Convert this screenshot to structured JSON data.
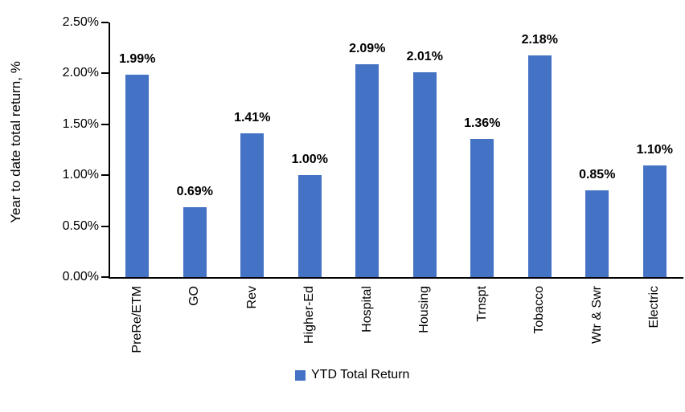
{
  "chart_data": {
    "type": "bar",
    "categories": [
      "PreRe/ETM",
      "GO",
      "Rev",
      "Higher-Ed",
      "Hospital",
      "Housing",
      "Trnspt",
      "Tobacco",
      "Wtr & Swr",
      "Electric"
    ],
    "values": [
      1.99,
      0.69,
      1.41,
      1.0,
      2.09,
      2.01,
      1.36,
      2.18,
      0.85,
      1.1
    ],
    "data_labels": [
      "1.99%",
      "0.69%",
      "1.41%",
      "1.00%",
      "2.09%",
      "2.01%",
      "1.36%",
      "2.18%",
      "0.85%",
      "1.10%"
    ],
    "title": "",
    "xlabel": "",
    "ylabel": "Year to date total return, %",
    "ylim": [
      0,
      2.5
    ],
    "yticks": [
      "0.00%",
      "0.50%",
      "1.00%",
      "1.50%",
      "2.00%",
      "2.50%"
    ],
    "grid": false,
    "legend_position": "bottom",
    "legend": [
      {
        "label": "YTD Total Return",
        "color": "#4472C4"
      }
    ],
    "bar_color": "#4472C4"
  },
  "colors": {
    "bar": "#4472C4",
    "axis": "#000000",
    "text": "#000000",
    "background": "#FFFFFF"
  }
}
